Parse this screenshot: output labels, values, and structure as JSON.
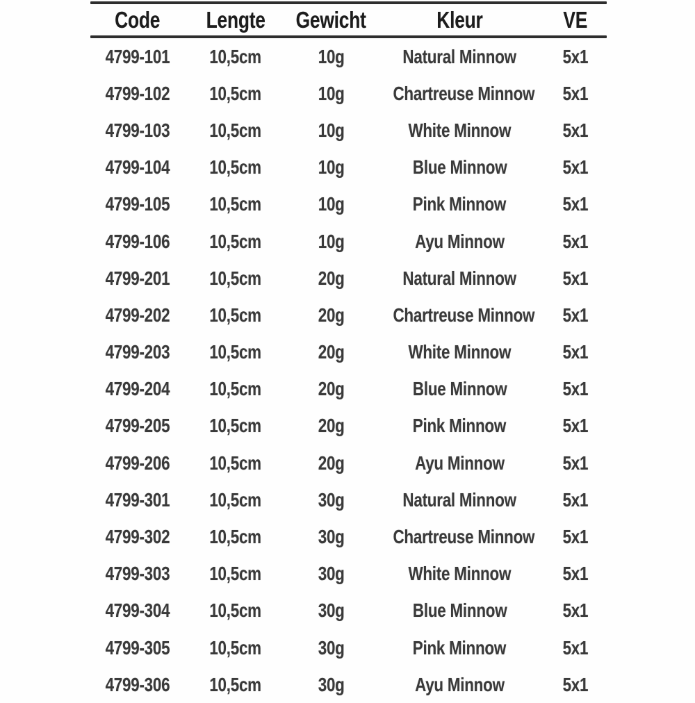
{
  "page": {
    "background_color": "#fefefe",
    "text_color": "#3a3a3a",
    "header_text_color": "#1d1d1d",
    "rule_color": "#2e2e2e"
  },
  "chart_data": {
    "type": "table",
    "title": "",
    "columns": [
      "Code",
      "Lengte",
      "Gewicht",
      "Kleur",
      "VE"
    ],
    "rows": [
      [
        "4799-101",
        "10,5cm",
        "10g",
        "Natural Minnow",
        "5x1"
      ],
      [
        "4799-102",
        "10,5cm",
        "10g",
        "Chartreuse Minnow",
        "5x1"
      ],
      [
        "4799-103",
        "10,5cm",
        "10g",
        "White Minnow",
        "5x1"
      ],
      [
        "4799-104",
        "10,5cm",
        "10g",
        "Blue Minnow",
        "5x1"
      ],
      [
        "4799-105",
        "10,5cm",
        "10g",
        "Pink Minnow",
        "5x1"
      ],
      [
        "4799-106",
        "10,5cm",
        "10g",
        "Ayu Minnow",
        "5x1"
      ],
      [
        "4799-201",
        "10,5cm",
        "20g",
        "Natural Minnow",
        "5x1"
      ],
      [
        "4799-202",
        "10,5cm",
        "20g",
        "Chartreuse Minnow",
        "5x1"
      ],
      [
        "4799-203",
        "10,5cm",
        "20g",
        "White Minnow",
        "5x1"
      ],
      [
        "4799-204",
        "10,5cm",
        "20g",
        "Blue Minnow",
        "5x1"
      ],
      [
        "4799-205",
        "10,5cm",
        "20g",
        "Pink Minnow",
        "5x1"
      ],
      [
        "4799-206",
        "10,5cm",
        "20g",
        "Ayu Minnow",
        "5x1"
      ],
      [
        "4799-301",
        "10,5cm",
        "30g",
        "Natural Minnow",
        "5x1"
      ],
      [
        "4799-302",
        "10,5cm",
        "30g",
        "Chartreuse Minnow",
        "5x1"
      ],
      [
        "4799-303",
        "10,5cm",
        "30g",
        "White Minnow",
        "5x1"
      ],
      [
        "4799-304",
        "10,5cm",
        "30g",
        "Blue Minnow",
        "5x1"
      ],
      [
        "4799-305",
        "10,5cm",
        "30g",
        "Pink Minnow",
        "5x1"
      ],
      [
        "4799-306",
        "10,5cm",
        "30g",
        "Ayu Minnow",
        "5x1"
      ]
    ],
    "layout": {
      "grid": "off",
      "header_rule": "thick top and bottom rules around header row",
      "column_alignment": "center"
    }
  }
}
